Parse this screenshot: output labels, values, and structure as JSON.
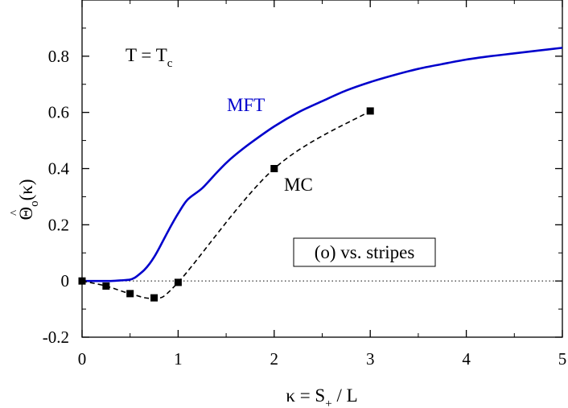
{
  "chart_data": {
    "type": "line",
    "title": "",
    "xlabel": {
      "main": "κ = S",
      "sub": "+",
      "tail": " / L"
    },
    "ylabel": {
      "hat": "^",
      "main": "Θ",
      "sub": "o",
      "tail": "(κ)"
    },
    "xlim": [
      0,
      5
    ],
    "ylim": [
      -0.2,
      1.0
    ],
    "x_ticks": [
      0,
      1,
      2,
      3,
      4,
      5
    ],
    "x_tick_labels": [
      "0",
      "1",
      "2",
      "3",
      "4",
      "5"
    ],
    "y_ticks": [
      -0.2,
      0,
      0.2,
      0.4,
      0.6,
      0.8
    ],
    "y_tick_labels": [
      "-0.2",
      "0",
      "0.2",
      "0.4",
      "0.6",
      "0.8"
    ],
    "grid": false,
    "series": [
      {
        "name": "MFT",
        "style": "solid",
        "color": "#0000cc",
        "x": [
          0,
          0.1,
          0.2,
          0.3,
          0.4,
          0.5,
          0.55,
          0.6,
          0.65,
          0.7,
          0.75,
          0.8,
          0.9,
          1.0,
          1.1,
          1.25,
          1.4,
          1.5,
          1.6,
          1.75,
          2.0,
          2.25,
          2.5,
          2.75,
          3.0,
          3.25,
          3.5,
          3.75,
          4.0,
          4.25,
          4.5,
          4.75,
          5.0
        ],
        "y": [
          0,
          0,
          0,
          0,
          0.002,
          0.005,
          0.012,
          0.025,
          0.04,
          0.06,
          0.085,
          0.115,
          0.18,
          0.24,
          0.29,
          0.33,
          0.385,
          0.42,
          0.45,
          0.49,
          0.55,
          0.6,
          0.64,
          0.678,
          0.708,
          0.733,
          0.755,
          0.772,
          0.788,
          0.8,
          0.81,
          0.82,
          0.83
        ]
      },
      {
        "name": "MC",
        "style": "dashed",
        "marker": "square",
        "color": "#000000",
        "x": [
          0,
          0.25,
          0.5,
          0.75,
          1.0,
          2.0,
          3.0
        ],
        "y": [
          0.0,
          -0.018,
          -0.045,
          -0.06,
          -0.005,
          0.4,
          0.605
        ]
      }
    ],
    "reference_line": {
      "y": 0,
      "style": "dotted"
    },
    "annotations": {
      "temperature": {
        "main": "T = T",
        "sub": "c"
      },
      "mft_label": "MFT",
      "mc_label": "MC",
      "box_label": "(o) vs. stripes"
    }
  }
}
